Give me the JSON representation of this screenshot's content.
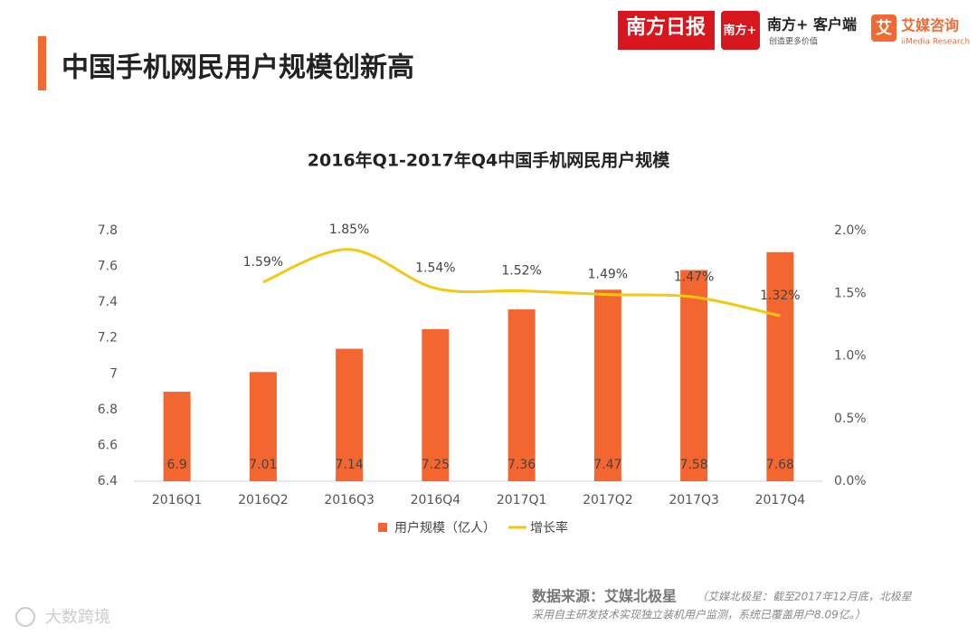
{
  "header": {
    "title": "中国手机网民用户规模创新高"
  },
  "logos": {
    "nanfang_daily": "南方日报",
    "nanfang_plus_icon": "南方+",
    "nanfang_app": "南方+ 客户端",
    "nanfang_slogan": "创造更多价值",
    "imedia_icon": "艾",
    "imedia_name": "艾媒咨询",
    "imedia_en": "iiMedia Research"
  },
  "chart_data": {
    "type": "bar",
    "title": "2016年Q1-2017年Q4中国手机网民用户规模",
    "categories": [
      "2016Q1",
      "2016Q2",
      "2016Q3",
      "2016Q4",
      "2017Q1",
      "2017Q2",
      "2017Q3",
      "2017Q4"
    ],
    "series": [
      {
        "name": "用户规模（亿人）",
        "type": "bar",
        "color": "#f4662f",
        "values": [
          6.9,
          7.01,
          7.14,
          7.25,
          7.36,
          7.47,
          7.58,
          7.68
        ]
      },
      {
        "name": "增长率",
        "type": "line",
        "axis": "y2",
        "color": "#f2c811",
        "values": [
          null,
          1.59,
          1.85,
          1.54,
          1.52,
          1.49,
          1.47,
          1.32
        ],
        "value_labels": [
          null,
          "1.59%",
          "1.85%",
          "1.54%",
          "1.52%",
          "1.49%",
          "1.47%",
          "1.32%"
        ]
      }
    ],
    "ylim": [
      6.4,
      7.8
    ],
    "yticks": [
      6.4,
      6.6,
      6.8,
      7,
      7.2,
      7.4,
      7.6,
      7.8
    ],
    "y2lim": [
      0,
      2
    ],
    "y2ticks": [
      {
        "value": 0,
        "label": "0.0%"
      },
      {
        "value": 0.5,
        "label": "0.5%"
      },
      {
        "value": 1,
        "label": "1.0%"
      },
      {
        "value": 1.5,
        "label": "1.5%"
      },
      {
        "value": 2,
        "label": "2.0%"
      }
    ],
    "legend": "bottom",
    "grid": false
  },
  "source": {
    "label": "数据来源：艾媒北极星",
    "note": [
      "（艾媒北极星：截至2017年12月底，北极星",
      "采用自主研发技术实现独立装机用户监测，系统已覆盖用户8.09亿。）"
    ]
  },
  "watermark": "大数跨境"
}
